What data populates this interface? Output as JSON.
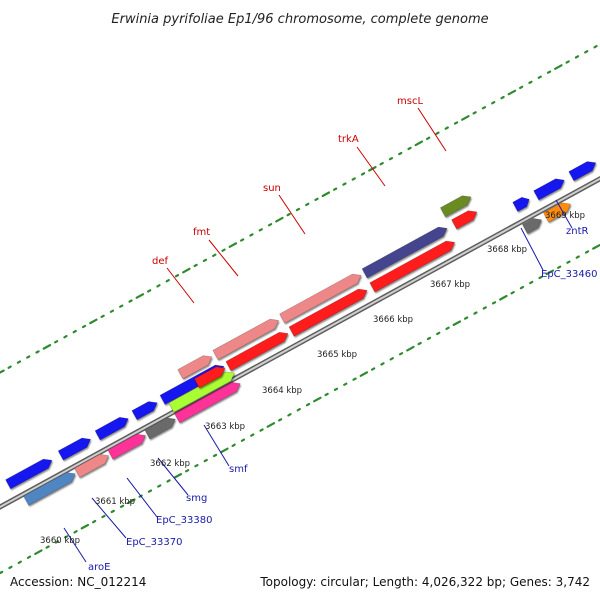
{
  "title": "Erwinia pyrifoliae Ep1/96 chromosome, complete genome",
  "accession": "Accession: NC_012214",
  "topology": "Topology: circular; Length: 4,026,322 bp; Genes: 3,742",
  "colors": {
    "backbone": "#8c8c8c",
    "dots": "#2f8a2f",
    "red_label": "#cc0000",
    "blue_label": "#1a1aa8",
    "cds_red": "#ff1a1a",
    "cds_blue": "#1515ee",
    "pink": "#ee8888",
    "navy": "#44448f",
    "olive": "#6b8b22",
    "orange": "#ff8c10",
    "gray": "#6a6a6a",
    "steel": "#4f86c2",
    "magenta": "#ff3399",
    "lime": "#aaff33"
  },
  "kbp_ticks": [
    "3660 kbp",
    "3661 kbp",
    "3662 kbp",
    "3663 kbp",
    "3664 kbp",
    "3665 kbp",
    "3666 kbp",
    "3667 kbp",
    "3668 kbp",
    "3669 kbp"
  ],
  "red_labels": [
    "def",
    "fmt",
    "sun",
    "trkA",
    "mscL"
  ],
  "blue_labels": [
    "aroE",
    "EpC_33370",
    "EpC_33380",
    "smg",
    "smf",
    "EpC_33460",
    "zntR"
  ]
}
